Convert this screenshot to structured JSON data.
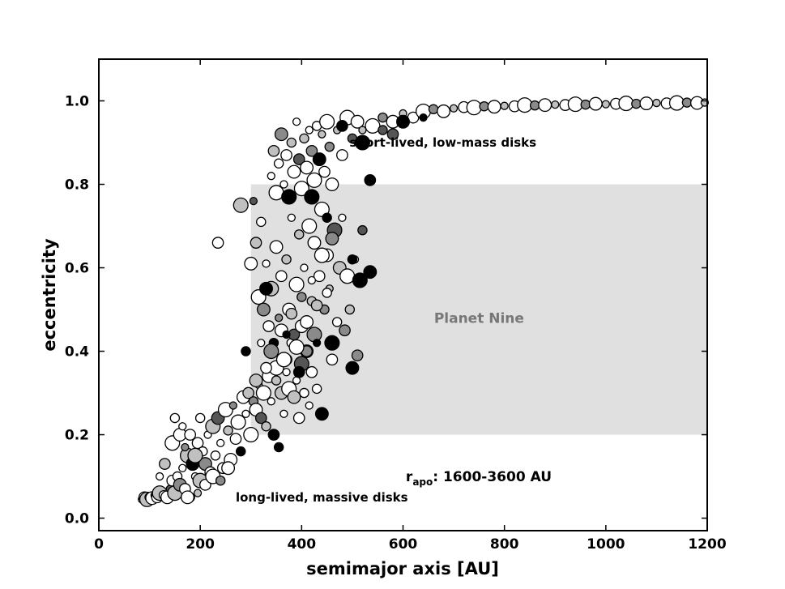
{
  "chart_data": {
    "type": "scatter",
    "title": "",
    "xlabel": "semimajor axis [AU]",
    "ylabel": "eccentricity",
    "xlim": [
      0,
      1200
    ],
    "ylim": [
      -0.03,
      1.1
    ],
    "xticks": [
      0,
      200,
      400,
      600,
      800,
      1000,
      1200
    ],
    "xtick_labels": [
      "0",
      "200",
      "400",
      "600",
      "800",
      "1000",
      "1200"
    ],
    "yticks": [
      0.0,
      0.2,
      0.4,
      0.6,
      0.8,
      1.0
    ],
    "ytick_labels": [
      "0.0",
      "0.2",
      "0.4",
      "0.6",
      "0.8",
      "1.0"
    ],
    "grid": false,
    "marker_colors": [
      "#ffffff",
      "#c0c0c0",
      "#8a8a8a",
      "#555555",
      "#000000"
    ],
    "region": {
      "label": "Planet Nine",
      "x": [
        300,
        1200
      ],
      "y": [
        0.2,
        0.8
      ],
      "color": "#e0e0e0"
    },
    "annotations": [
      {
        "text": "short-lived, low-mass disks",
        "x": 750,
        "y": 0.9
      },
      {
        "text": "long-lived, massive disks",
        "x": 270,
        "y": 0.05
      }
    ],
    "rapo_annotation": {
      "prefix": "r",
      "subscript": "apo",
      "suffix": ": 1600-3600 AU",
      "x": 810,
      "y": 0.1
    },
    "points": [
      [
        85,
        0.045,
        0
      ],
      [
        90,
        0.05,
        0
      ],
      [
        95,
        0.045,
        1
      ],
      [
        100,
        0.05,
        0
      ],
      [
        105,
        0.048,
        0
      ],
      [
        110,
        0.055,
        2
      ],
      [
        115,
        0.05,
        0
      ],
      [
        120,
        0.06,
        1
      ],
      [
        128,
        0.055,
        0
      ],
      [
        135,
        0.05,
        0
      ],
      [
        140,
        0.07,
        3
      ],
      [
        145,
        0.09,
        0
      ],
      [
        150,
        0.06,
        1
      ],
      [
        155,
        0.1,
        0
      ],
      [
        160,
        0.08,
        2
      ],
      [
        165,
        0.12,
        0
      ],
      [
        170,
        0.07,
        0
      ],
      [
        175,
        0.15,
        1
      ],
      [
        180,
        0.05,
        0
      ],
      [
        185,
        0.13,
        4
      ],
      [
        190,
        0.1,
        0
      ],
      [
        195,
        0.18,
        0
      ],
      [
        200,
        0.09,
        1
      ],
      [
        205,
        0.16,
        0
      ],
      [
        210,
        0.13,
        2
      ],
      [
        215,
        0.2,
        0
      ],
      [
        220,
        0.11,
        0
      ],
      [
        225,
        0.22,
        1
      ],
      [
        230,
        0.15,
        0
      ],
      [
        235,
        0.24,
        3
      ],
      [
        240,
        0.18,
        0
      ],
      [
        245,
        0.12,
        0
      ],
      [
        250,
        0.26,
        0
      ],
      [
        255,
        0.21,
        1
      ],
      [
        260,
        0.14,
        0
      ],
      [
        265,
        0.27,
        2
      ],
      [
        270,
        0.19,
        0
      ],
      [
        275,
        0.23,
        0
      ],
      [
        280,
        0.16,
        4
      ],
      [
        285,
        0.29,
        0
      ],
      [
        120,
        0.1,
        0
      ],
      [
        130,
        0.13,
        1
      ],
      [
        145,
        0.18,
        0
      ],
      [
        150,
        0.24,
        0
      ],
      [
        160,
        0.2,
        0
      ],
      [
        170,
        0.17,
        2
      ],
      [
        180,
        0.2,
        0
      ],
      [
        190,
        0.15,
        1
      ],
      [
        200,
        0.24,
        0
      ],
      [
        175,
        0.05,
        0
      ],
      [
        195,
        0.06,
        1
      ],
      [
        210,
        0.08,
        0
      ],
      [
        225,
        0.1,
        0
      ],
      [
        240,
        0.09,
        2
      ],
      [
        255,
        0.12,
        0
      ],
      [
        165,
        0.22,
        0
      ],
      [
        235,
        0.66,
        0
      ],
      [
        280,
        0.75,
        1
      ],
      [
        290,
        0.4,
        4
      ],
      [
        300,
        0.61,
        0
      ],
      [
        290,
        0.25,
        0
      ],
      [
        295,
        0.3,
        1
      ],
      [
        300,
        0.2,
        0
      ],
      [
        305,
        0.28,
        2
      ],
      [
        310,
        0.26,
        0
      ],
      [
        315,
        0.32,
        0
      ],
      [
        320,
        0.24,
        3
      ],
      [
        325,
        0.3,
        0
      ],
      [
        330,
        0.22,
        1
      ],
      [
        335,
        0.34,
        0
      ],
      [
        340,
        0.28,
        0
      ],
      [
        345,
        0.2,
        4
      ],
      [
        350,
        0.36,
        0
      ],
      [
        355,
        0.17,
        4
      ],
      [
        360,
        0.3,
        1
      ],
      [
        365,
        0.25,
        0
      ],
      [
        370,
        0.38,
        2
      ],
      [
        375,
        0.31,
        0
      ],
      [
        380,
        0.42,
        0
      ],
      [
        385,
        0.29,
        1
      ],
      [
        390,
        0.33,
        0
      ],
      [
        395,
        0.24,
        0
      ],
      [
        400,
        0.37,
        3
      ],
      [
        405,
        0.3,
        0
      ],
      [
        410,
        0.4,
        1
      ],
      [
        415,
        0.27,
        0
      ],
      [
        420,
        0.35,
        0
      ],
      [
        425,
        0.44,
        2
      ],
      [
        430,
        0.31,
        0
      ],
      [
        440,
        0.25,
        4
      ],
      [
        305,
        0.76,
        3
      ],
      [
        310,
        0.66,
        1
      ],
      [
        315,
        0.53,
        0
      ],
      [
        320,
        0.71,
        0
      ],
      [
        325,
        0.5,
        2
      ],
      [
        330,
        0.61,
        0
      ],
      [
        335,
        0.46,
        0
      ],
      [
        340,
        0.55,
        1
      ],
      [
        345,
        0.42,
        4
      ],
      [
        350,
        0.65,
        0
      ],
      [
        355,
        0.48,
        2
      ],
      [
        360,
        0.58,
        0
      ],
      [
        365,
        0.38,
        0
      ],
      [
        370,
        0.62,
        1
      ],
      [
        375,
        0.5,
        0
      ],
      [
        380,
        0.72,
        0
      ],
      [
        385,
        0.44,
        3
      ],
      [
        390,
        0.56,
        0
      ],
      [
        395,
        0.68,
        1
      ],
      [
        400,
        0.46,
        0
      ],
      [
        405,
        0.6,
        0
      ],
      [
        410,
        0.4,
        2
      ],
      [
        415,
        0.7,
        0
      ],
      [
        420,
        0.52,
        1
      ],
      [
        425,
        0.66,
        0
      ],
      [
        430,
        0.42,
        4
      ],
      [
        435,
        0.58,
        0
      ],
      [
        440,
        0.74,
        0
      ],
      [
        445,
        0.5,
        2
      ],
      [
        450,
        0.63,
        0
      ],
      [
        455,
        0.55,
        1
      ],
      [
        460,
        0.38,
        0
      ],
      [
        465,
        0.69,
        3
      ],
      [
        470,
        0.47,
        0
      ],
      [
        475,
        0.6,
        1
      ],
      [
        480,
        0.72,
        0
      ],
      [
        485,
        0.45,
        2
      ],
      [
        490,
        0.58,
        0
      ],
      [
        495,
        0.5,
        1
      ],
      [
        500,
        0.36,
        4
      ],
      [
        505,
        0.62,
        0
      ],
      [
        510,
        0.39,
        2
      ],
      [
        515,
        0.57,
        4
      ],
      [
        520,
        0.69,
        3
      ],
      [
        310,
        0.33,
        1
      ],
      [
        320,
        0.42,
        0
      ],
      [
        330,
        0.36,
        0
      ],
      [
        340,
        0.4,
        2
      ],
      [
        350,
        0.33,
        1
      ],
      [
        360,
        0.45,
        0
      ],
      [
        370,
        0.35,
        0
      ],
      [
        380,
        0.49,
        1
      ],
      [
        390,
        0.41,
        0
      ],
      [
        400,
        0.53,
        2
      ],
      [
        410,
        0.47,
        0
      ],
      [
        420,
        0.57,
        0
      ],
      [
        430,
        0.51,
        1
      ],
      [
        440,
        0.63,
        0
      ],
      [
        450,
        0.54,
        0
      ],
      [
        460,
        0.67,
        2
      ],
      [
        340,
        0.82,
        0
      ],
      [
        345,
        0.88,
        1
      ],
      [
        350,
        0.78,
        0
      ],
      [
        355,
        0.85,
        0
      ],
      [
        360,
        0.92,
        2
      ],
      [
        365,
        0.8,
        0
      ],
      [
        370,
        0.87,
        0
      ],
      [
        375,
        0.77,
        4
      ],
      [
        380,
        0.9,
        1
      ],
      [
        385,
        0.83,
        0
      ],
      [
        390,
        0.95,
        0
      ],
      [
        395,
        0.86,
        3
      ],
      [
        400,
        0.79,
        0
      ],
      [
        405,
        0.91,
        1
      ],
      [
        410,
        0.84,
        0
      ],
      [
        415,
        0.93,
        0
      ],
      [
        420,
        0.88,
        2
      ],
      [
        425,
        0.81,
        0
      ],
      [
        430,
        0.94,
        0
      ],
      [
        435,
        0.86,
        4
      ],
      [
        440,
        0.92,
        1
      ],
      [
        445,
        0.83,
        0
      ],
      [
        450,
        0.95,
        0
      ],
      [
        455,
        0.89,
        2
      ],
      [
        460,
        0.8,
        0
      ],
      [
        470,
        0.93,
        1
      ],
      [
        480,
        0.87,
        0
      ],
      [
        490,
        0.96,
        0
      ],
      [
        500,
        0.91,
        3
      ],
      [
        510,
        0.95,
        0
      ],
      [
        520,
        0.93,
        1
      ],
      [
        535,
        0.81,
        4
      ],
      [
        540,
        0.94,
        0
      ],
      [
        560,
        0.96,
        2
      ],
      [
        580,
        0.95,
        0
      ],
      [
        600,
        0.97,
        1
      ],
      [
        620,
        0.96,
        0
      ],
      [
        640,
        0.975,
        0
      ],
      [
        660,
        0.98,
        2
      ],
      [
        680,
        0.975,
        0
      ],
      [
        700,
        0.982,
        1
      ],
      [
        720,
        0.985,
        0
      ],
      [
        740,
        0.984,
        0
      ],
      [
        760,
        0.987,
        2
      ],
      [
        780,
        0.986,
        0
      ],
      [
        800,
        0.988,
        1
      ],
      [
        820,
        0.987,
        0
      ],
      [
        840,
        0.99,
        0
      ],
      [
        860,
        0.989,
        2
      ],
      [
        880,
        0.99,
        0
      ],
      [
        900,
        0.991,
        1
      ],
      [
        920,
        0.99,
        0
      ],
      [
        940,
        0.992,
        0
      ],
      [
        960,
        0.991,
        2
      ],
      [
        980,
        0.993,
        0
      ],
      [
        1000,
        0.992,
        1
      ],
      [
        1020,
        0.993,
        0
      ],
      [
        1040,
        0.994,
        0
      ],
      [
        1060,
        0.993,
        2
      ],
      [
        1080,
        0.994,
        0
      ],
      [
        1100,
        0.995,
        1
      ],
      [
        1120,
        0.994,
        0
      ],
      [
        1140,
        0.995,
        0
      ],
      [
        1160,
        0.996,
        2
      ],
      [
        1180,
        0.995,
        0
      ],
      [
        1195,
        0.996,
        1
      ],
      [
        480,
        0.94,
        4
      ],
      [
        520,
        0.9,
        4
      ],
      [
        560,
        0.93,
        3
      ],
      [
        600,
        0.95,
        4
      ],
      [
        640,
        0.96,
        4
      ],
      [
        580,
        0.92,
        3
      ],
      [
        420,
        0.77,
        4
      ],
      [
        450,
        0.72,
        4
      ],
      [
        330,
        0.55,
        4
      ],
      [
        370,
        0.44,
        4
      ],
      [
        395,
        0.35,
        4
      ],
      [
        460,
        0.42,
        4
      ],
      [
        500,
        0.62,
        4
      ],
      [
        535,
        0.59,
        4
      ]
    ]
  }
}
